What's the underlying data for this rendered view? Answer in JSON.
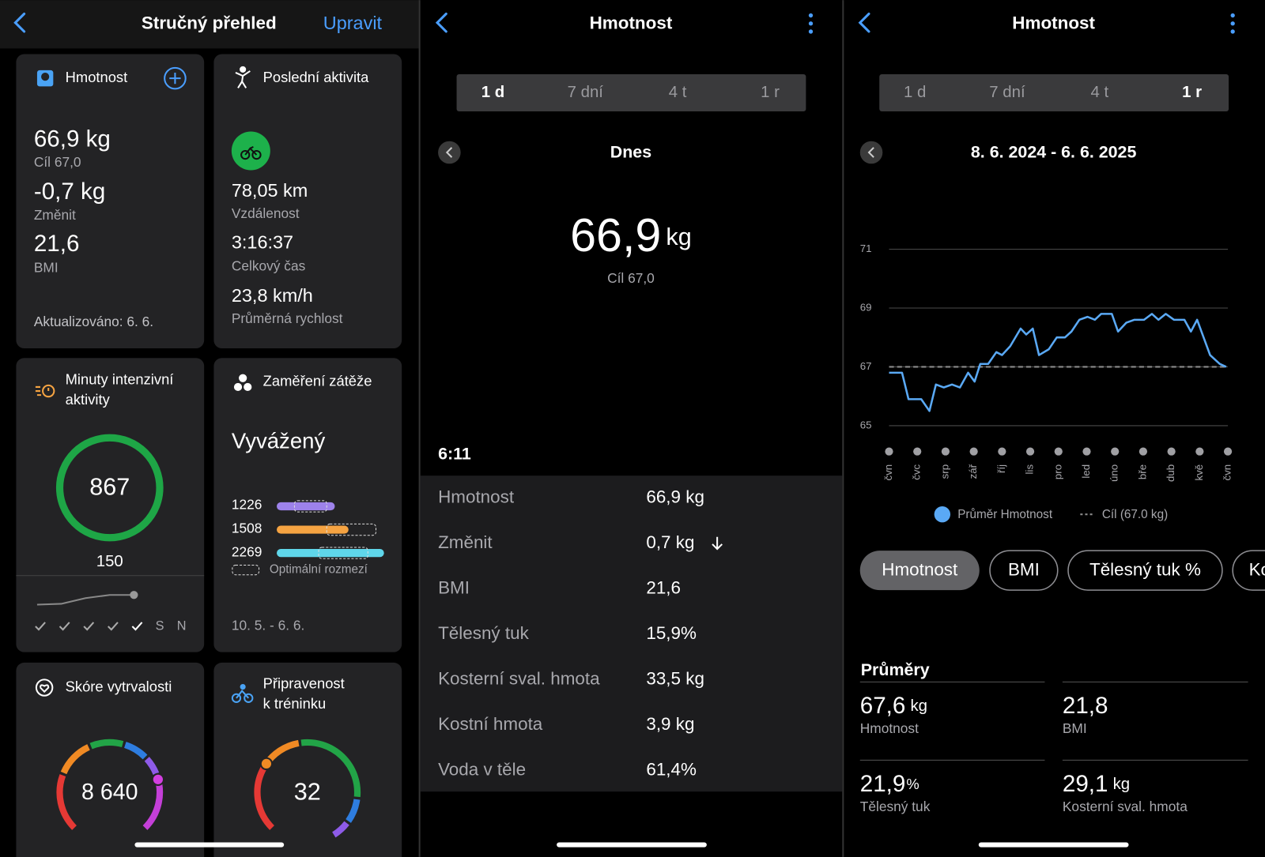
{
  "screens": [
    {
      "header": {
        "title": "Stručný přehled",
        "action": "Upravit"
      },
      "weight_card": {
        "title": "Hmotnost",
        "weight": "66,9 kg",
        "goal": "Cíl 67,0",
        "change": "-0,7 kg",
        "change_label": "Změnit",
        "bmi": "21,6",
        "bmi_label": "BMI",
        "updated": "Aktualizováno: 6. 6."
      },
      "activity_card": {
        "title": "Poslední aktivita",
        "distance": "78,05 km",
        "distance_label": "Vzdálenost",
        "time": "3:16:37",
        "time_label": "Celkový čas",
        "speed": "23,8 km/h",
        "speed_label": "Průměrná rychlost"
      },
      "intensity_card": {
        "title_lines": [
          "Minuty intenzivní",
          "aktivity"
        ],
        "minutes": "867",
        "goal": "150",
        "days": [
          "S",
          "N"
        ]
      },
      "load_card": {
        "title": "Zaměření zátěže",
        "status": "Vyvážený",
        "loads": [
          "1226",
          "1508",
          "2269"
        ],
        "legend": "Optimální rozmezí",
        "period": "10. 5. - 6. 6."
      },
      "endurance_card": {
        "title": "Skóre vytrvalosti",
        "score": "8 640"
      },
      "readiness_card": {
        "title_lines": [
          "Připravenost",
          "k tréninku"
        ],
        "score": "32"
      }
    },
    {
      "header": {
        "title": "Hmotnost"
      },
      "tabs": [
        "1 d",
        "7 dní",
        "4 t",
        "1 r"
      ],
      "period": "Dnes",
      "weight": "66,9",
      "unit": "kg",
      "goal": "Cíl 67,0",
      "time": "6:11",
      "rows": [
        [
          "Hmotnost",
          "66,9 kg"
        ],
        [
          "Změnit",
          "0,7 kg"
        ],
        [
          "BMI",
          "21,6"
        ],
        [
          "Tělesný tuk",
          "15,9%"
        ],
        [
          "Kosterní sval. hmota",
          "33,5 kg"
        ],
        [
          "Kostní hmota",
          "3,9 kg"
        ],
        [
          "Voda v těle",
          "61,4%"
        ]
      ]
    },
    {
      "header": {
        "title": "Hmotnost"
      },
      "tabs": [
        "1 d",
        "7 dní",
        "4 t",
        "1 r"
      ],
      "period": "8. 6. 2024 - 6. 6. 2025",
      "chips": [
        "Hmotnost",
        "BMI",
        "Tělesný tuk %",
        "Ko"
      ],
      "averages_title": "Průměry",
      "averages": [
        {
          "value": "67,6",
          "unit": "kg",
          "label": "Hmotnost"
        },
        {
          "value": "21,8",
          "label": "BMI"
        },
        {
          "value": "21,9",
          "unit": "%",
          "label": "Tělesný tuk"
        },
        {
          "value": "29,1",
          "unit": "kg",
          "label": "Kosterní sval. hmota"
        }
      ]
    }
  ],
  "chart_data": {
    "type": "line",
    "x": [
      0,
      0.46,
      0.69,
      1.14,
      1.43,
      1.66,
      1.94,
      2.23,
      2.51,
      2.8,
      3.03,
      3.23,
      3.51,
      3.8,
      4,
      4.29,
      4.66,
      4.86,
      5.09,
      5.31,
      5.66,
      5.94,
      6.23,
      6.46,
      6.74,
      7.03,
      7.29,
      7.51,
      7.89,
      8.11,
      8.4,
      8.69,
      9.03,
      9.31,
      9.54,
      9.8,
      10.09,
      10.46,
      10.69,
      10.91,
      11.14,
      11.37,
      11.71,
      11.94
    ],
    "series": [
      {
        "name": "Průměr Hmotnost",
        "color": "#5aa9f5",
        "values": [
          66.8,
          66.8,
          65.9,
          65.9,
          65.5,
          66.4,
          66.3,
          66.4,
          66.3,
          66.8,
          66.5,
          67.1,
          67.1,
          67.5,
          67.4,
          67.7,
          68.3,
          68.1,
          68.3,
          67.4,
          67.6,
          68.0,
          68.0,
          68.2,
          68.6,
          68.7,
          68.6,
          68.8,
          68.8,
          68.2,
          68.5,
          68.6,
          68.6,
          68.8,
          68.6,
          68.8,
          68.6,
          68.6,
          68.2,
          68.6,
          68.0,
          67.4,
          67.1,
          67.0
        ]
      }
    ],
    "goal": {
      "name": "Cíl (67.0 kg)",
      "value": 67,
      "color": "#8a8a8a"
    },
    "xlim": [
      0,
      12
    ],
    "xticks": [
      {
        "value": 0,
        "label": "čvn"
      },
      {
        "value": 1,
        "label": "čvc"
      },
      {
        "value": 2,
        "label": "srp"
      },
      {
        "value": 3,
        "label": "zář"
      },
      {
        "value": 4,
        "label": "říj"
      },
      {
        "value": 5,
        "label": "lis"
      },
      {
        "value": 6,
        "label": "pro"
      },
      {
        "value": 7,
        "label": "led"
      },
      {
        "value": 8,
        "label": "úno"
      },
      {
        "value": 9,
        "label": "bře"
      },
      {
        "value": 10,
        "label": "dub"
      },
      {
        "value": 11,
        "label": "kvě"
      },
      {
        "value": 12,
        "label": "čvn"
      }
    ],
    "ylim": [
      65,
      71
    ],
    "yticks": [
      65,
      67,
      69,
      71
    ],
    "grid": true
  }
}
